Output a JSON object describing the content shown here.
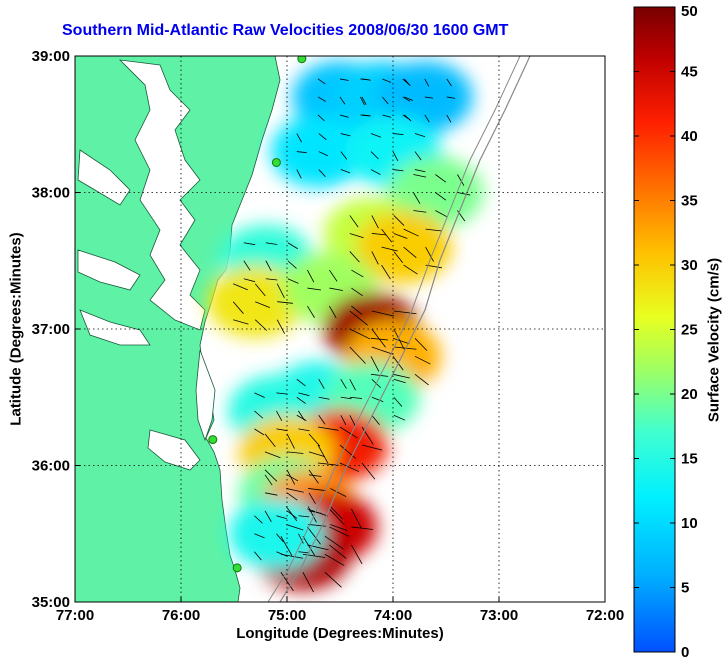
{
  "title": "Southern Mid-Atlantic Raw Velocities 2008/06/30 1600 GMT",
  "xlabel": "Longitude (Degrees:Minutes)",
  "ylabel": "Latitude (Degrees:Minutes)",
  "colorbar": {
    "label": "Surface Velocity (cm/s)",
    "ticks": [
      "0",
      "5",
      "10",
      "15",
      "20",
      "25",
      "30",
      "35",
      "40",
      "45",
      "50"
    ],
    "range": [
      0,
      50
    ]
  },
  "map": {
    "x_ticks": [
      "77:00",
      "76:00",
      "75:00",
      "74:00",
      "73:00",
      "72:00"
    ],
    "y_ticks": [
      "39:00",
      "38:00",
      "37:00",
      "36:00",
      "35:00"
    ],
    "lon_range": [
      -77,
      -72
    ],
    "lat_range": [
      35,
      39
    ],
    "land_color": "#5ff2a6",
    "grid": "dotted",
    "stations": [
      {
        "lon": -74.86,
        "lat": 38.98
      },
      {
        "lon": -75.1,
        "lat": 38.22
      },
      {
        "lon": -75.7,
        "lat": 36.19
      },
      {
        "lon": -75.47,
        "lat": 35.25
      }
    ]
  },
  "velocity_field": [
    {
      "lon": -74.5,
      "lat": 38.7,
      "speed": 8
    },
    {
      "lon": -74.1,
      "lat": 38.7,
      "speed": 9
    },
    {
      "lon": -73.7,
      "lat": 38.7,
      "speed": 7
    },
    {
      "lon": -74.7,
      "lat": 38.3,
      "speed": 11
    },
    {
      "lon": -74.0,
      "lat": 38.3,
      "speed": 13
    },
    {
      "lon": -73.6,
      "lat": 38.0,
      "speed": 20
    },
    {
      "lon": -74.2,
      "lat": 37.7,
      "speed": 24
    },
    {
      "lon": -73.9,
      "lat": 37.6,
      "speed": 30
    },
    {
      "lon": -75.2,
      "lat": 37.5,
      "speed": 16
    },
    {
      "lon": -75.3,
      "lat": 37.2,
      "speed": 28
    },
    {
      "lon": -74.6,
      "lat": 37.3,
      "speed": 22
    },
    {
      "lon": -74.2,
      "lat": 37.0,
      "speed": 48
    },
    {
      "lon": -74.0,
      "lat": 36.8,
      "speed": 32
    },
    {
      "lon": -74.7,
      "lat": 36.5,
      "speed": 14
    },
    {
      "lon": -74.2,
      "lat": 36.5,
      "speed": 18
    },
    {
      "lon": -75.1,
      "lat": 36.4,
      "speed": 15
    },
    {
      "lon": -74.5,
      "lat": 36.15,
      "speed": 42
    },
    {
      "lon": -75.0,
      "lat": 36.1,
      "speed": 30
    },
    {
      "lon": -75.0,
      "lat": 35.8,
      "speed": 19
    },
    {
      "lon": -74.8,
      "lat": 35.7,
      "speed": 34
    },
    {
      "lon": -74.6,
      "lat": 35.55,
      "speed": 45
    },
    {
      "lon": -74.85,
      "lat": 35.35,
      "speed": 47
    },
    {
      "lon": -75.1,
      "lat": 35.5,
      "speed": 14
    }
  ]
}
